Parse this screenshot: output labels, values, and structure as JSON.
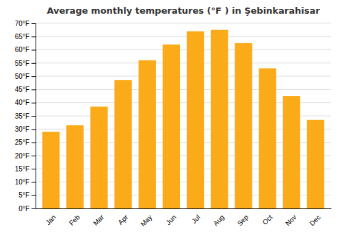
{
  "chart_data": {
    "type": "bar",
    "title": "Average monthly temperatures (°F ) in Şebinkarahisar",
    "categories": [
      "Jan",
      "Feb",
      "Mar",
      "Apr",
      "May",
      "Jun",
      "Jul",
      "Aug",
      "Sep",
      "Oct",
      "Nov",
      "Dec"
    ],
    "values": [
      29,
      31.5,
      38.5,
      48.5,
      56,
      62,
      67,
      67.5,
      62.5,
      53,
      42.5,
      33.5
    ],
    "color": "#FBAA19",
    "ylim": [
      0,
      70
    ],
    "yticks": [
      {
        "value": 0,
        "label": "0°F"
      },
      {
        "value": 5,
        "label": "5°F"
      },
      {
        "value": 10,
        "label": "10°F"
      },
      {
        "value": 15,
        "label": "15°F"
      },
      {
        "value": 20,
        "label": "20°F"
      },
      {
        "value": 25,
        "label": "25°F"
      },
      {
        "value": 30,
        "label": "30°F"
      },
      {
        "value": 35,
        "label": "35°F"
      },
      {
        "value": 40,
        "label": "40°F"
      },
      {
        "value": 45,
        "label": "45°F"
      },
      {
        "value": 50,
        "label": "50°F"
      },
      {
        "value": 55,
        "label": "55°F"
      },
      {
        "value": 60,
        "label": "60°F"
      },
      {
        "value": 65,
        "label": "65°F"
      },
      {
        "value": 70,
        "label": "70°F"
      }
    ],
    "grid": true
  }
}
